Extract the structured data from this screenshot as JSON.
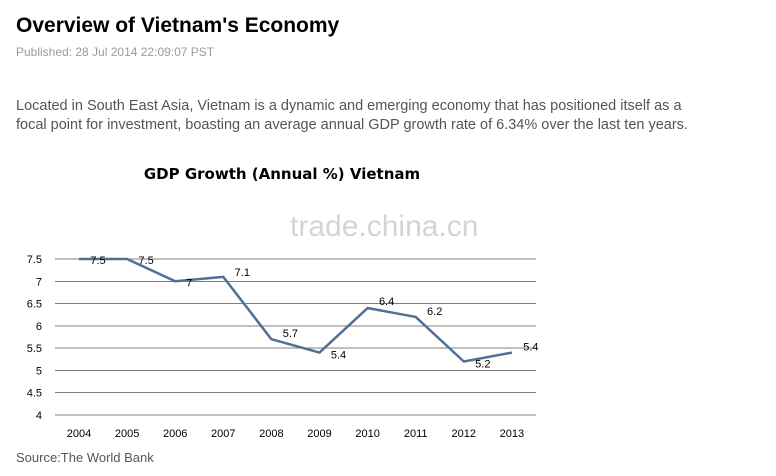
{
  "header": {
    "title": "Overview of Vietnam's Economy",
    "published": "Published: 28 Jul 2014 22:09:07 PST"
  },
  "intro": "Located in South East Asia, Vietnam is a dynamic and emerging economy that has positioned itself as a focal point for investment, boasting an average annual GDP growth rate of 6.34% over the last ten years.",
  "watermark": "trade.china.cn",
  "source": "Source:The World Bank",
  "colors": {
    "line": "#4f7196",
    "grid": "#808080",
    "title_text": "#000000",
    "body_text": "#555555"
  },
  "chart_data": {
    "type": "line",
    "title": "GDP Growth (Annual %) Vietnam",
    "xlabel": "",
    "ylabel": "",
    "categories": [
      "2004",
      "2005",
      "2006",
      "2007",
      "2008",
      "2009",
      "2010",
      "2011",
      "2012",
      "2013"
    ],
    "series": [
      {
        "name": "GDP Growth (Annual %)",
        "values": [
          7.5,
          7.5,
          7,
          7.1,
          5.7,
          5.4,
          6.4,
          6.2,
          5.2,
          5.4
        ]
      }
    ],
    "data_labels": [
      "7.5",
      "7.5",
      "7",
      "7.1",
      "5.7",
      "5.4",
      "6.4",
      "6.2",
      "5.2",
      "5.4"
    ],
    "ylim": [
      4,
      7.5
    ],
    "yticks": [
      "4",
      "4.5",
      "5",
      "5.5",
      "6",
      "6.5",
      "7",
      "7.5"
    ],
    "grid": true,
    "legend": "none"
  }
}
